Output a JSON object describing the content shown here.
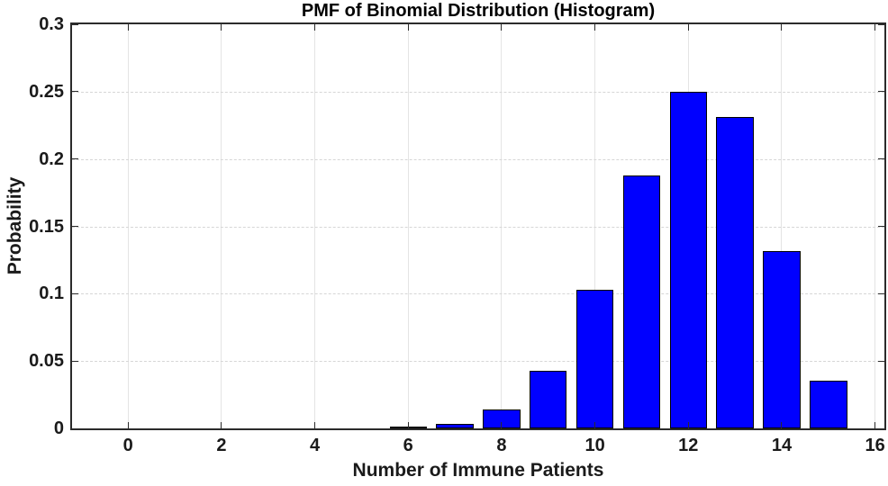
{
  "figure": {
    "background": "#ffffff"
  },
  "chart_data": {
    "type": "bar",
    "title": "PMF of Binomial Distribution (Histogram)",
    "xlabel": "Number of Immune Patients",
    "ylabel": "Probability",
    "x": [
      0,
      1,
      2,
      3,
      4,
      5,
      6,
      7,
      8,
      9,
      10,
      11,
      12,
      13,
      14,
      15
    ],
    "values": [
      0,
      0,
      0,
      0,
      0,
      0.0001,
      0.0007,
      0.0035,
      0.0138,
      0.043,
      0.1032,
      0.1876,
      0.2501,
      0.2309,
      0.1319,
      0.0352
    ],
    "bar_width": 0.8,
    "bar_color": "#0000ff",
    "bar_edge_color": "#000000",
    "xlim": [
      -1.2,
      16.2
    ],
    "ylim": [
      0,
      0.3
    ],
    "xticks": [
      0,
      2,
      4,
      6,
      8,
      10,
      12,
      14,
      16
    ],
    "yticks": [
      0,
      0.05,
      0.1,
      0.15,
      0.2,
      0.25,
      0.3
    ],
    "ytick_labels": [
      "0",
      "0.05",
      "0.1",
      "0.15",
      "0.2",
      "0.25",
      "0.3"
    ],
    "grid": true,
    "legend": "none",
    "axis_color": "#2b2b2b",
    "grid_color": "#e4e4e4",
    "text_color": "#000000"
  }
}
